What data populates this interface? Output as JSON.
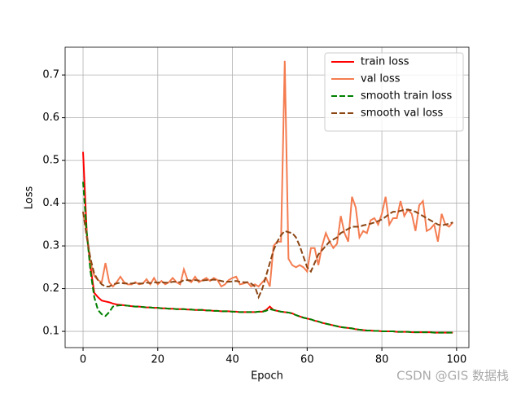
{
  "chart_data": {
    "type": "line",
    "xlabel": "Epoch",
    "ylabel": "Loss",
    "x": [
      0,
      1,
      2,
      3,
      4,
      5,
      6,
      7,
      8,
      9,
      10,
      11,
      12,
      13,
      14,
      15,
      16,
      17,
      18,
      19,
      20,
      21,
      22,
      23,
      24,
      25,
      26,
      27,
      28,
      29,
      30,
      31,
      32,
      33,
      34,
      35,
      36,
      37,
      38,
      39,
      40,
      41,
      42,
      43,
      44,
      45,
      46,
      47,
      48,
      49,
      50,
      51,
      52,
      53,
      54,
      55,
      56,
      57,
      58,
      59,
      60,
      61,
      62,
      63,
      64,
      65,
      66,
      67,
      68,
      69,
      70,
      71,
      72,
      73,
      74,
      75,
      76,
      77,
      78,
      79,
      80,
      81,
      82,
      83,
      84,
      85,
      86,
      87,
      88,
      89,
      90,
      91,
      92,
      93,
      94,
      95,
      96,
      97,
      98,
      99
    ],
    "series": [
      {
        "name": "train loss",
        "color": "#ff0000",
        "dash": false,
        "values": [
          0.52,
          0.33,
          0.25,
          0.19,
          0.18,
          0.172,
          0.17,
          0.168,
          0.165,
          0.163,
          0.162,
          0.161,
          0.16,
          0.159,
          0.158,
          0.158,
          0.157,
          0.156,
          0.156,
          0.155,
          0.155,
          0.154,
          0.154,
          0.153,
          0.153,
          0.152,
          0.152,
          0.152,
          0.151,
          0.151,
          0.15,
          0.15,
          0.15,
          0.149,
          0.149,
          0.148,
          0.148,
          0.147,
          0.147,
          0.147,
          0.146,
          0.146,
          0.145,
          0.145,
          0.145,
          0.145,
          0.145,
          0.146,
          0.146,
          0.15,
          0.158,
          0.15,
          0.148,
          0.146,
          0.145,
          0.144,
          0.142,
          0.138,
          0.135,
          0.132,
          0.13,
          0.128,
          0.125,
          0.123,
          0.12,
          0.118,
          0.116,
          0.114,
          0.112,
          0.11,
          0.109,
          0.108,
          0.107,
          0.105,
          0.104,
          0.103,
          0.102,
          0.102,
          0.101,
          0.101,
          0.1,
          0.1,
          0.1,
          0.1,
          0.099,
          0.099,
          0.099,
          0.099,
          0.098,
          0.098,
          0.098,
          0.098,
          0.098,
          0.098,
          0.097,
          0.097,
          0.097,
          0.097,
          0.097,
          0.097
        ]
      },
      {
        "name": "val loss",
        "color": "#f47c50",
        "dash": false,
        "values": [
          0.38,
          0.33,
          0.26,
          0.23,
          0.22,
          0.215,
          0.26,
          0.215,
          0.205,
          0.215,
          0.228,
          0.215,
          0.21,
          0.21,
          0.215,
          0.21,
          0.212,
          0.222,
          0.21,
          0.225,
          0.21,
          0.218,
          0.21,
          0.215,
          0.225,
          0.215,
          0.21,
          0.245,
          0.22,
          0.215,
          0.228,
          0.215,
          0.22,
          0.225,
          0.218,
          0.225,
          0.22,
          0.205,
          0.21,
          0.22,
          0.225,
          0.228,
          0.21,
          0.212,
          0.215,
          0.205,
          0.21,
          0.205,
          0.215,
          0.225,
          0.205,
          0.3,
          0.31,
          0.31,
          0.733,
          0.27,
          0.255,
          0.25,
          0.255,
          0.25,
          0.24,
          0.295,
          0.295,
          0.255,
          0.3,
          0.33,
          0.31,
          0.295,
          0.305,
          0.37,
          0.33,
          0.31,
          0.415,
          0.39,
          0.32,
          0.335,
          0.33,
          0.36,
          0.365,
          0.35,
          0.375,
          0.415,
          0.35,
          0.365,
          0.365,
          0.405,
          0.37,
          0.385,
          0.375,
          0.335,
          0.395,
          0.405,
          0.335,
          0.34,
          0.35,
          0.31,
          0.375,
          0.35,
          0.345,
          0.355
        ]
      },
      {
        "name": "smooth train loss",
        "color": "#008000",
        "dash": true,
        "values": [
          0.45,
          0.33,
          0.24,
          0.18,
          0.15,
          0.14,
          0.136,
          0.145,
          0.158,
          0.16,
          0.161,
          0.161,
          0.16,
          0.159,
          0.158,
          0.158,
          0.157,
          0.156,
          0.156,
          0.155,
          0.155,
          0.154,
          0.154,
          0.153,
          0.153,
          0.152,
          0.152,
          0.152,
          0.151,
          0.151,
          0.15,
          0.15,
          0.15,
          0.149,
          0.149,
          0.148,
          0.148,
          0.147,
          0.147,
          0.147,
          0.146,
          0.146,
          0.145,
          0.145,
          0.145,
          0.145,
          0.145,
          0.146,
          0.146,
          0.148,
          0.152,
          0.15,
          0.148,
          0.146,
          0.145,
          0.144,
          0.142,
          0.138,
          0.135,
          0.132,
          0.13,
          0.128,
          0.125,
          0.123,
          0.12,
          0.118,
          0.116,
          0.114,
          0.112,
          0.11,
          0.109,
          0.108,
          0.107,
          0.105,
          0.104,
          0.103,
          0.102,
          0.102,
          0.101,
          0.101,
          0.1,
          0.1,
          0.1,
          0.1,
          0.099,
          0.099,
          0.099,
          0.099,
          0.098,
          0.098,
          0.098,
          0.098,
          0.098,
          0.098,
          0.097,
          0.097,
          0.097,
          0.097,
          0.097,
          0.097
        ]
      },
      {
        "name": "smooth val loss",
        "color": "#8b4513",
        "dash": true,
        "values": [
          0.38,
          0.32,
          0.27,
          0.235,
          0.22,
          0.21,
          0.205,
          0.205,
          0.21,
          0.212,
          0.214,
          0.212,
          0.212,
          0.212,
          0.213,
          0.212,
          0.212,
          0.214,
          0.213,
          0.215,
          0.214,
          0.215,
          0.214,
          0.214,
          0.216,
          0.216,
          0.215,
          0.22,
          0.22,
          0.219,
          0.22,
          0.219,
          0.219,
          0.22,
          0.22,
          0.221,
          0.22,
          0.218,
          0.216,
          0.216,
          0.217,
          0.218,
          0.216,
          0.215,
          0.215,
          0.212,
          0.205,
          0.18,
          0.2,
          0.23,
          0.26,
          0.29,
          0.31,
          0.325,
          0.335,
          0.332,
          0.33,
          0.32,
          0.3,
          0.275,
          0.25,
          0.24,
          0.26,
          0.28,
          0.29,
          0.3,
          0.31,
          0.315,
          0.32,
          0.33,
          0.335,
          0.34,
          0.345,
          0.345,
          0.345,
          0.348,
          0.35,
          0.352,
          0.355,
          0.358,
          0.362,
          0.368,
          0.375,
          0.38,
          0.38,
          0.382,
          0.385,
          0.385,
          0.383,
          0.38,
          0.375,
          0.37,
          0.365,
          0.36,
          0.355,
          0.35,
          0.348,
          0.35,
          0.352,
          0.355
        ]
      }
    ],
    "xlim": [
      -4.8,
      103.3
    ],
    "ylim": [
      0.062,
      0.765
    ],
    "xticks": [
      0,
      20,
      40,
      60,
      80,
      100
    ],
    "yticks": [
      0.1,
      0.2,
      0.3,
      0.4,
      0.5,
      0.6,
      0.7
    ],
    "grid": true,
    "legend": "upper right",
    "watermark": "CSDN @GIS 数据栈"
  }
}
